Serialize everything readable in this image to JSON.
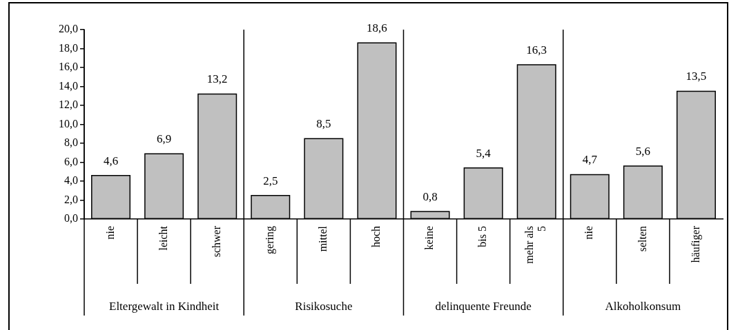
{
  "chart_data": {
    "type": "bar",
    "categories": [
      "nie",
      "leicht",
      "schwer",
      "gering",
      "mittel",
      "hoch",
      "keine",
      "bis 5",
      "mehr als 5",
      "nie",
      "selten",
      "häufiger"
    ],
    "values": [
      4.6,
      6.9,
      13.2,
      2.5,
      8.5,
      18.6,
      0.8,
      5.4,
      16.3,
      4.7,
      5.6,
      13.5
    ],
    "value_labels": [
      "4,6",
      "6,9",
      "13,2",
      "2,5",
      "8,5",
      "18,6",
      "0,8",
      "5,4",
      "16,3",
      "4,7",
      "5,6",
      "13,5"
    ],
    "color": "#c0c0c0",
    "ylim": [
      0,
      20
    ],
    "yticks": [
      {
        "value": 0,
        "label": "0,0"
      },
      {
        "value": 2,
        "label": "2,0"
      },
      {
        "value": 4,
        "label": "4,0"
      },
      {
        "value": 6,
        "label": "6,0"
      },
      {
        "value": 8,
        "label": "8,0"
      },
      {
        "value": 10,
        "label": "10,0"
      },
      {
        "value": 12,
        "label": "12,0"
      },
      {
        "value": 14,
        "label": "14,0"
      },
      {
        "value": 16,
        "label": "16,0"
      },
      {
        "value": 18,
        "label": "18,0"
      },
      {
        "value": 20,
        "label": "20,0"
      }
    ],
    "annotations": [
      "Eltergewalt in Kindheit",
      "Risikosuche",
      "delinquente Freunde",
      "Alkoholkonsum"
    ],
    "grid": false,
    "legend": false
  }
}
